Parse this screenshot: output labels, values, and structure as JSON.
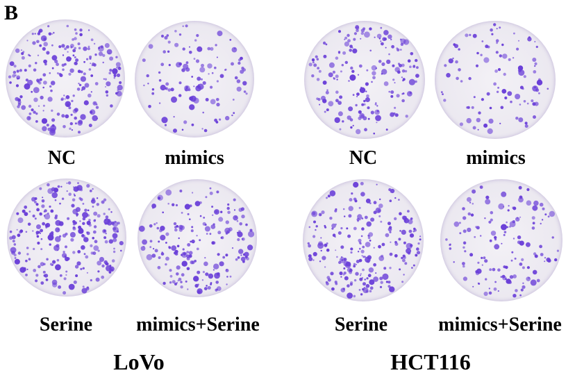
{
  "panel_letter": "B",
  "colony_color": "#6a3fd8",
  "groups": [
    {
      "name": "LoVo",
      "dishes": [
        {
          "label": "NC",
          "density": 0.9
        },
        {
          "label": "mimics",
          "density": 0.45
        },
        {
          "label": "Serine",
          "density": 1.0
        },
        {
          "label": "mimics+Serine",
          "density": 0.75
        }
      ]
    },
    {
      "name": "HCT116",
      "dishes": [
        {
          "label": "NC",
          "density": 0.7
        },
        {
          "label": "mimics",
          "density": 0.4
        },
        {
          "label": "Serine",
          "density": 0.9
        },
        {
          "label": "mimics+Serine",
          "density": 0.55
        }
      ]
    }
  ]
}
